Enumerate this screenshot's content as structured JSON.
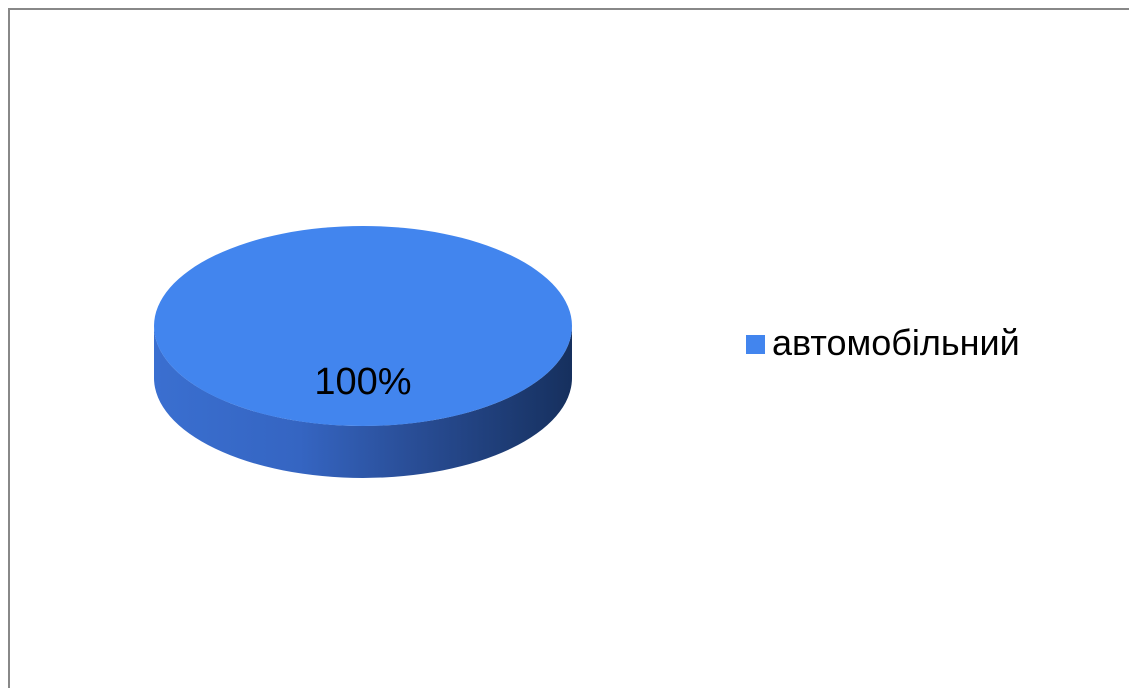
{
  "chart_data": {
    "type": "pie",
    "title": "",
    "slices": [
      {
        "label": "автомобільний",
        "value": 100,
        "data_label": "100%",
        "color": "#4285ee"
      }
    ],
    "legend_position": "right",
    "three_d": true
  }
}
